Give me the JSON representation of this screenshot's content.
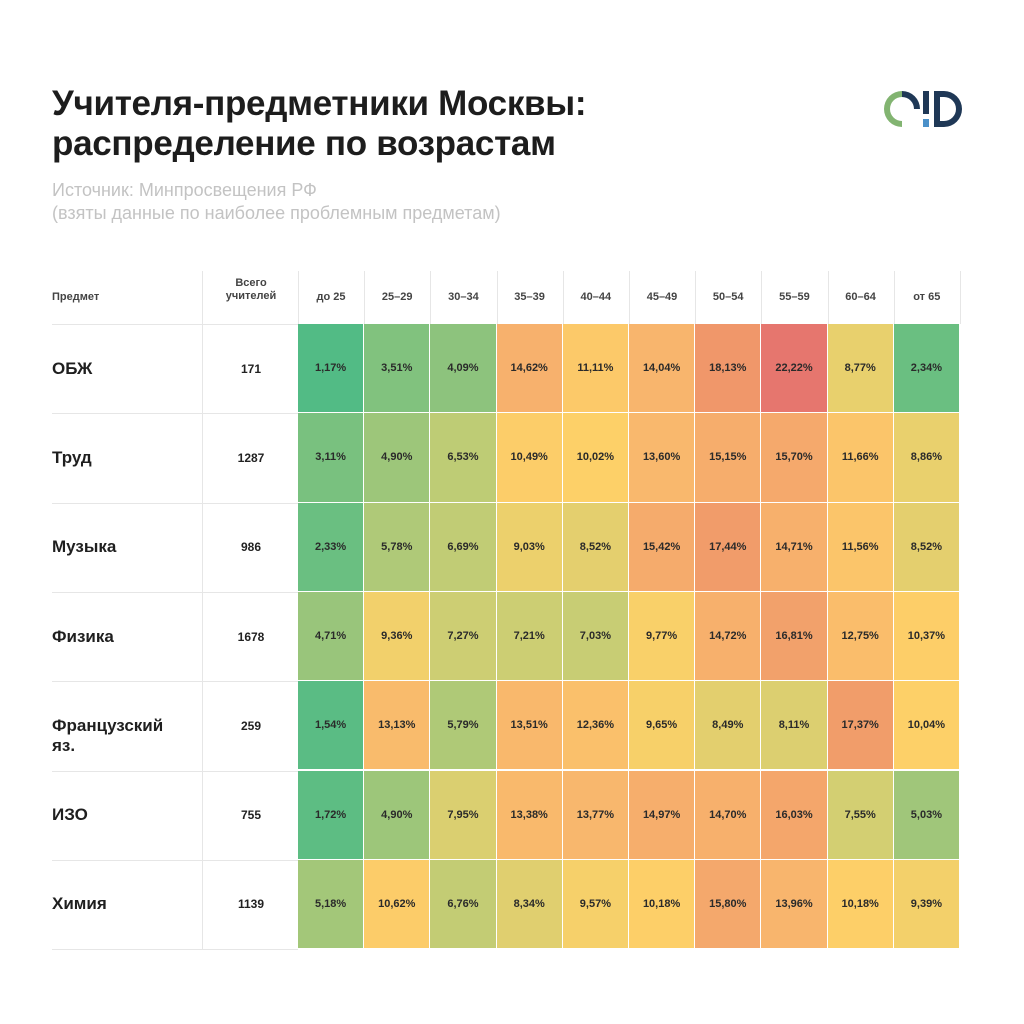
{
  "title_lines": [
    "Учителя-предметники Москвы:",
    "распределение по возрастам"
  ],
  "source_lines": [
    "Источник: Минпросвещения РФ",
    "(взяты данные по наиболее проблемным предметам)"
  ],
  "logo": {
    "name": "ed-logo",
    "colors": {
      "green": "#82b471",
      "navy": "#1f3856",
      "blue": "#4a90c9"
    }
  },
  "chart_data": {
    "type": "heatmap",
    "header_subject": "Предмет",
    "header_total_lines": [
      "Всего",
      "учителей"
    ],
    "columns": [
      "до 25",
      "25–29",
      "30–34",
      "35–39",
      "40–44",
      "45–49",
      "50–54",
      "55–59",
      "60–64",
      "от 65"
    ],
    "rows": [
      {
        "subject": "ОБЖ",
        "total": "171",
        "values": [
          "1,17%",
          "3,51%",
          "4,09%",
          "14,62%",
          "11,11%",
          "14,04%",
          "18,13%",
          "22,22%",
          "8,77%",
          "2,34%"
        ]
      },
      {
        "subject": "Труд",
        "total": "1287",
        "values": [
          "3,11%",
          "4,90%",
          "6,53%",
          "10,49%",
          "10,02%",
          "13,60%",
          "15,15%",
          "15,70%",
          "11,66%",
          "8,86%"
        ]
      },
      {
        "subject": "Музыка",
        "total": "986",
        "values": [
          "2,33%",
          "5,78%",
          "6,69%",
          "9,03%",
          "8,52%",
          "15,42%",
          "17,44%",
          "14,71%",
          "11,56%",
          "8,52%"
        ]
      },
      {
        "subject": "Физика",
        "total": "1678",
        "values": [
          "4,71%",
          "9,36%",
          "7,27%",
          "7,21%",
          "7,03%",
          "9,77%",
          "14,72%",
          "16,81%",
          "12,75%",
          "10,37%"
        ]
      },
      {
        "subject": "Французский яз.",
        "total": "259",
        "values": [
          "1,54%",
          "13,13%",
          "5,79%",
          "13,51%",
          "12,36%",
          "9,65%",
          "8,49%",
          "8,11%",
          "17,37%",
          "10,04%"
        ]
      },
      {
        "subject": "ИЗО",
        "total": "755",
        "values": [
          "1,72%",
          "4,90%",
          "7,95%",
          "13,38%",
          "13,77%",
          "14,97%",
          "14,70%",
          "16,03%",
          "7,55%",
          "5,03%"
        ]
      },
      {
        "subject": "Химия",
        "total": "1139",
        "values": [
          "5,18%",
          "10,62%",
          "6,76%",
          "8,34%",
          "9,57%",
          "10,18%",
          "15,80%",
          "13,96%",
          "10,18%",
          "9,39%"
        ]
      }
    ],
    "color_scale": [
      {
        "at": 1,
        "color": "#4fbb85"
      },
      {
        "at": 5,
        "color": "#9fc67a"
      },
      {
        "at": 7.5,
        "color": "#d2cf72"
      },
      {
        "at": 10,
        "color": "#fdd068"
      },
      {
        "at": 14,
        "color": "#f8b56d"
      },
      {
        "at": 18,
        "color": "#f0986a"
      },
      {
        "at": 22.5,
        "color": "#e5746e"
      }
    ]
  }
}
